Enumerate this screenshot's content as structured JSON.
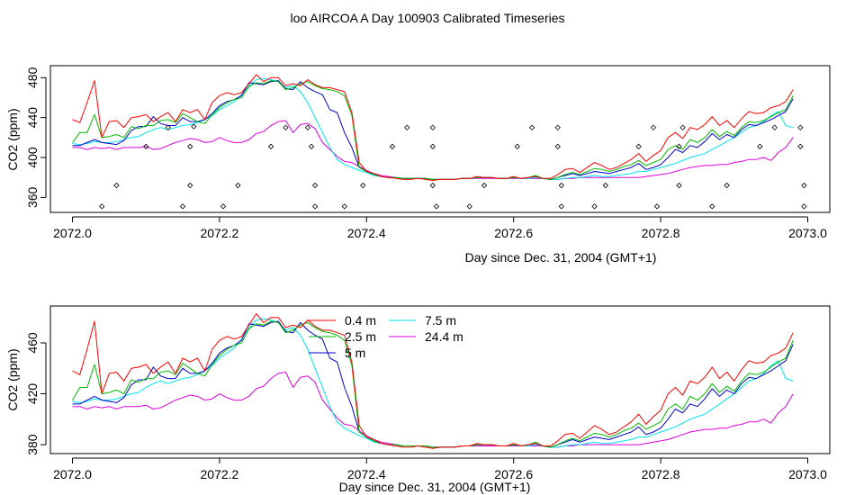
{
  "figure": {
    "title": "loo AIRCOA A  Day 100903  Calibrated Timeseries"
  },
  "colors": {
    "0.4 m": "#ff0000",
    "2.5 m": "#00bb00",
    "5 m": "#0000cc",
    "7.5 m": "#00e5ee",
    "24.4 m": "#dd00dd",
    "markers": "#000000"
  },
  "chart_data": [
    {
      "type": "line",
      "xlabel": "Day since Dec. 31, 2004 (GMT+1)",
      "ylabel": "CO2 (ppm)",
      "xlim": [
        2071.97,
        2073.03
      ],
      "ylim": [
        345,
        492
      ],
      "xticks": [
        2072.0,
        2072.2,
        2072.4,
        2072.6,
        2072.8,
        2073.0
      ],
      "xtick_labels": [
        "2072.0",
        "2072.2",
        "2072.4",
        "2072.6",
        "2072.8",
        "2073.0"
      ],
      "yticks": [
        360,
        400,
        440,
        480
      ],
      "ytick_labels": [
        "360",
        "400",
        "440",
        "480"
      ],
      "legend": "none",
      "markers": {
        "x": [
          2072.04,
          2072.06,
          2072.1,
          2072.13,
          2072.15,
          2072.16,
          2072.16,
          2072.165,
          2072.205,
          2072.225,
          2072.27,
          2072.29,
          2072.32,
          2072.325,
          2072.33,
          2072.33,
          2072.37,
          2072.395,
          2072.435,
          2072.455,
          2072.49,
          2072.49,
          2072.49,
          2072.495,
          2072.54,
          2072.56,
          2072.605,
          2072.625,
          2072.66,
          2072.66,
          2072.665,
          2072.665,
          2072.71,
          2072.725,
          2072.77,
          2072.79,
          2072.795,
          2072.825,
          2072.825,
          2072.83,
          2072.87,
          2072.89,
          2072.935,
          2072.955,
          2072.99,
          2072.99,
          2072.995,
          2072.995
        ],
        "y": [
          351,
          372,
          411,
          430,
          351,
          372,
          411,
          431,
          351,
          372,
          411,
          430,
          430,
          411,
          372,
          351,
          351,
          372,
          411,
          430,
          430,
          411,
          372,
          351,
          351,
          372,
          411,
          430,
          430,
          411,
          372,
          351,
          351,
          372,
          411,
          430,
          351,
          372,
          411,
          430,
          351,
          372,
          411,
          430,
          430,
          411,
          372,
          351
        ]
      }
    },
    {
      "type": "line",
      "xlabel": "Day since Dec. 31, 2004 (GMT+1)",
      "ylabel": "CO2 (ppm)",
      "xlim": [
        2071.97,
        2073.03
      ],
      "ylim": [
        373,
        489
      ],
      "xticks": [
        2072.0,
        2072.2,
        2072.4,
        2072.6,
        2072.8,
        2073.0
      ],
      "xtick_labels": [
        "2072.0",
        "2072.2",
        "2072.4",
        "2072.6",
        "2072.8",
        "2073.0"
      ],
      "yticks": [
        380,
        420,
        460
      ],
      "ytick_labels": [
        "380",
        "420",
        "460"
      ],
      "legend": "inside, top-center",
      "legend_entries": [
        "0.4 m",
        "2.5 m",
        "5 m",
        "7.5 m",
        "24.4 m"
      ]
    }
  ],
  "series": {
    "x": [
      2072.0,
      2072.01,
      2072.02,
      2072.03,
      2072.04,
      2072.05,
      2072.06,
      2072.07,
      2072.08,
      2072.09,
      2072.1,
      2072.11,
      2072.12,
      2072.13,
      2072.14,
      2072.15,
      2072.16,
      2072.17,
      2072.18,
      2072.19,
      2072.2,
      2072.21,
      2072.22,
      2072.23,
      2072.24,
      2072.25,
      2072.26,
      2072.27,
      2072.28,
      2072.29,
      2072.3,
      2072.31,
      2072.32,
      2072.33,
      2072.34,
      2072.35,
      2072.36,
      2072.37,
      2072.38,
      2072.39,
      2072.4,
      2072.41,
      2072.42,
      2072.43,
      2072.44,
      2072.45,
      2072.46,
      2072.47,
      2072.48,
      2072.49,
      2072.5,
      2072.51,
      2072.52,
      2072.53,
      2072.54,
      2072.55,
      2072.56,
      2072.57,
      2072.58,
      2072.59,
      2072.6,
      2072.61,
      2072.62,
      2072.63,
      2072.64,
      2072.65,
      2072.66,
      2072.67,
      2072.68,
      2072.69,
      2072.7,
      2072.71,
      2072.72,
      2072.73,
      2072.74,
      2072.75,
      2072.76,
      2072.77,
      2072.78,
      2072.79,
      2072.8,
      2072.81,
      2072.82,
      2072.83,
      2072.84,
      2072.85,
      2072.86,
      2072.87,
      2072.88,
      2072.89,
      2072.9,
      2072.91,
      2072.92,
      2072.93,
      2072.94,
      2072.95,
      2072.96,
      2072.97,
      2072.98
    ],
    "lines": [
      {
        "name": "0.4 m",
        "values": [
          438,
          435,
          455,
          477,
          420,
          436,
          437,
          430,
          440,
          441,
          443,
          436,
          441,
          445,
          436,
          448,
          445,
          448,
          438,
          455,
          462,
          465,
          463,
          465,
          474,
          483,
          476,
          480,
          480,
          472,
          474,
          472,
          478,
          473,
          470,
          470,
          468,
          466,
          445,
          395,
          386,
          384,
          381,
          380,
          379,
          378,
          378,
          379,
          378,
          377,
          378,
          378,
          378,
          379,
          379,
          381,
          380,
          380,
          379,
          379,
          381,
          379,
          380,
          381,
          379,
          379,
          383,
          388,
          389,
          385,
          390,
          395,
          392,
          388,
          390,
          394,
          398,
          404,
          396,
          402,
          407,
          420,
          425,
          419,
          430,
          428,
          433,
          441,
          432,
          437,
          430,
          439,
          446,
          444,
          445,
          450,
          452,
          456,
          468
        ]
      },
      {
        "name": "2.5 m",
        "values": [
          415,
          425,
          425,
          443,
          420,
          421,
          423,
          420,
          431,
          429,
          432,
          432,
          437,
          438,
          435,
          444,
          440,
          436,
          434,
          443,
          450,
          455,
          458,
          460,
          471,
          475,
          474,
          477,
          476,
          468,
          470,
          474,
          476,
          472,
          469,
          468,
          466,
          462,
          442,
          390,
          386,
          383,
          381,
          380,
          380,
          379,
          379,
          379,
          379,
          378,
          378,
          378,
          378,
          379,
          379,
          380,
          380,
          380,
          379,
          379,
          380,
          379,
          380,
          382,
          379,
          378,
          380,
          383,
          385,
          383,
          386,
          389,
          388,
          386,
          388,
          391,
          393,
          397,
          392,
          395,
          398,
          408,
          412,
          408,
          418,
          415,
          420,
          428,
          421,
          426,
          422,
          430,
          436,
          435,
          437,
          441,
          445,
          448,
          462
        ]
      },
      {
        "name": "5 m",
        "values": [
          412,
          412,
          415,
          418,
          415,
          414,
          413,
          417,
          427,
          431,
          431,
          441,
          434,
          432,
          432,
          440,
          436,
          436,
          438,
          444,
          452,
          456,
          458,
          462,
          475,
          474,
          473,
          476,
          477,
          469,
          468,
          476,
          470,
          466,
          463,
          448,
          445,
          425,
          410,
          390,
          386,
          383,
          381,
          380,
          380,
          379,
          379,
          379,
          379,
          378,
          378,
          378,
          378,
          379,
          379,
          380,
          380,
          380,
          379,
          379,
          380,
          379,
          380,
          381,
          379,
          378,
          380,
          382,
          384,
          382,
          384,
          386,
          385,
          384,
          386,
          388,
          390,
          394,
          388,
          390,
          393,
          400,
          408,
          405,
          412,
          410,
          416,
          424,
          418,
          423,
          420,
          428,
          433,
          432,
          435,
          438,
          442,
          446,
          459
        ]
      },
      {
        "name": "7.5 m",
        "values": [
          414,
          413,
          414,
          416,
          415,
          415,
          416,
          418,
          420,
          421,
          425,
          428,
          430,
          428,
          430,
          432,
          433,
          435,
          438,
          442,
          448,
          452,
          456,
          463,
          472,
          478,
          479,
          478,
          476,
          470,
          472,
          466,
          455,
          440,
          425,
          410,
          398,
          393,
          390,
          387,
          385,
          382,
          381,
          380,
          380,
          379,
          379,
          379,
          379,
          378,
          378,
          378,
          378,
          379,
          379,
          380,
          380,
          380,
          379,
          379,
          380,
          379,
          379,
          380,
          379,
          378,
          378,
          379,
          380,
          380,
          381,
          382,
          381,
          381,
          382,
          383,
          384,
          386,
          386,
          388,
          390,
          392,
          394,
          397,
          400,
          402,
          404,
          408,
          412,
          416,
          420,
          425,
          430,
          432,
          436,
          442,
          446,
          432,
          430
        ]
      },
      {
        "name": "24.4 m",
        "values": [
          410,
          410,
          408,
          410,
          409,
          410,
          408,
          410,
          410,
          410,
          411,
          408,
          409,
          412,
          415,
          417,
          419,
          418,
          415,
          416,
          420,
          417,
          415,
          415,
          418,
          424,
          426,
          432,
          436,
          437,
          425,
          433,
          434,
          429,
          415,
          408,
          401,
          396,
          395,
          391,
          387,
          384,
          382,
          381,
          380,
          379,
          379,
          379,
          379,
          378,
          378,
          378,
          378,
          379,
          379,
          379,
          379,
          379,
          379,
          379,
          379,
          379,
          379,
          379,
          379,
          378,
          378,
          379,
          379,
          380,
          380,
          380,
          380,
          380,
          380,
          380,
          380,
          380,
          381,
          382,
          383,
          384,
          386,
          388,
          390,
          391,
          392,
          392,
          393,
          393,
          395,
          396,
          398,
          398,
          400,
          397,
          405,
          410,
          420
        ]
      }
    ]
  }
}
